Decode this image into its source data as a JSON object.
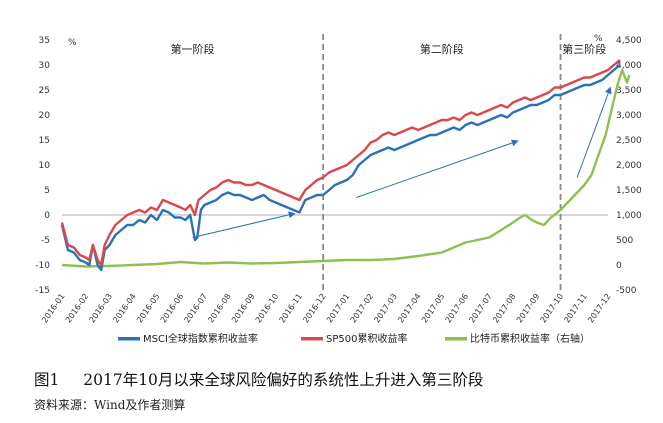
{
  "caption": {
    "figure_no": "图1",
    "title": "2017年10月以来全球风险偏好的系统性上升进入第三阶段",
    "source": "资料来源：Wind及作者测算"
  },
  "chart_data": {
    "type": "line",
    "left_axis": {
      "unit": "%",
      "ticks": [
        "35",
        "30",
        "25",
        "20",
        "15",
        "10",
        "5",
        "0",
        "-5",
        "-10",
        "-15"
      ],
      "min": -15,
      "max": 35
    },
    "right_axis": {
      "unit": "%",
      "ticks": [
        "4,500",
        "4,000",
        "3,500",
        "3,000",
        "2,500",
        "2,000",
        "1,500",
        "1,000",
        "500",
        "0",
        "-500"
      ],
      "min": -500,
      "max": 4500
    },
    "x_ticks": [
      "2016-01",
      "2016-02",
      "2016-03",
      "2016-04",
      "2016-05",
      "2016-06",
      "2016-07",
      "2016-08",
      "2016-09",
      "2016-10",
      "2016-11",
      "2016-12",
      "2017-01",
      "2017-02",
      "2017-03",
      "2017-04",
      "2017-05",
      "2017-06",
      "2017-07",
      "2017-08",
      "2017-09",
      "2017-10",
      "2017-11",
      "2017-12"
    ],
    "phases": [
      {
        "label": "第一阶段"
      },
      {
        "label": "第二阶段"
      },
      {
        "label": "第三阶段"
      }
    ],
    "phase_dividers": [
      "2016-12",
      "2017-10"
    ],
    "legend": [
      "MSCI全球指数累积收益率",
      "SP500累积收益率",
      "比特币累积收益率（右轴）"
    ],
    "colors": {
      "msci": "#2a72b5",
      "sp500": "#d9484a",
      "btc": "#8cc152",
      "arrow": "#2a72b5",
      "divider": "#888888"
    },
    "series": [
      {
        "name": "MSCI全球指数累积收益率",
        "axis": "left",
        "points": [
          [
            0,
            -2
          ],
          [
            0.25,
            -7
          ],
          [
            0.5,
            -7.5
          ],
          [
            0.75,
            -9
          ],
          [
            1.0,
            -9.5
          ],
          [
            1.15,
            -10
          ],
          [
            1.3,
            -6
          ],
          [
            1.5,
            -10
          ],
          [
            1.65,
            -11
          ],
          [
            1.8,
            -7
          ],
          [
            2.0,
            -6
          ],
          [
            2.25,
            -4
          ],
          [
            2.5,
            -3
          ],
          [
            2.75,
            -2
          ],
          [
            3.0,
            -2
          ],
          [
            3.25,
            -1
          ],
          [
            3.5,
            -1.5
          ],
          [
            3.75,
            0
          ],
          [
            4.0,
            -1
          ],
          [
            4.25,
            1
          ],
          [
            4.5,
            0.5
          ],
          [
            4.75,
            -0.5
          ],
          [
            5.0,
            -0.5
          ],
          [
            5.2,
            -1
          ],
          [
            5.4,
            0
          ],
          [
            5.6,
            -5
          ],
          [
            5.7,
            -4.5
          ],
          [
            5.85,
            1
          ],
          [
            6.0,
            2
          ],
          [
            6.25,
            2.5
          ],
          [
            6.5,
            3
          ],
          [
            6.75,
            4
          ],
          [
            7.0,
            4.5
          ],
          [
            7.25,
            4
          ],
          [
            7.5,
            4
          ],
          [
            7.75,
            3.5
          ],
          [
            8.0,
            3
          ],
          [
            8.25,
            3.5
          ],
          [
            8.5,
            4
          ],
          [
            8.75,
            3
          ],
          [
            9.0,
            2.5
          ],
          [
            9.25,
            2
          ],
          [
            9.5,
            1.5
          ],
          [
            9.75,
            1
          ],
          [
            10.0,
            0.5
          ],
          [
            10.25,
            3
          ],
          [
            10.5,
            3.5
          ],
          [
            10.75,
            4
          ],
          [
            11.0,
            4
          ],
          [
            11.25,
            5
          ],
          [
            11.5,
            6
          ],
          [
            11.75,
            6.5
          ],
          [
            12.0,
            7
          ],
          [
            12.25,
            8
          ],
          [
            12.5,
            10
          ],
          [
            12.75,
            11
          ],
          [
            13.0,
            12
          ],
          [
            13.25,
            12.5
          ],
          [
            13.5,
            13
          ],
          [
            13.75,
            13.5
          ],
          [
            14.0,
            13
          ],
          [
            14.25,
            13.5
          ],
          [
            14.5,
            14
          ],
          [
            14.75,
            14.5
          ],
          [
            15.0,
            15
          ],
          [
            15.25,
            15.5
          ],
          [
            15.5,
            16
          ],
          [
            15.75,
            16
          ],
          [
            16.0,
            16.5
          ],
          [
            16.25,
            17
          ],
          [
            16.5,
            17.5
          ],
          [
            16.75,
            17
          ],
          [
            17.0,
            18
          ],
          [
            17.25,
            18.5
          ],
          [
            17.5,
            18
          ],
          [
            17.75,
            18.5
          ],
          [
            18.0,
            19
          ],
          [
            18.25,
            19.5
          ],
          [
            18.5,
            20
          ],
          [
            18.75,
            19.5
          ],
          [
            19.0,
            20.5
          ],
          [
            19.25,
            21
          ],
          [
            19.5,
            21.5
          ],
          [
            19.75,
            22
          ],
          [
            20.0,
            22
          ],
          [
            20.25,
            22.5
          ],
          [
            20.5,
            23
          ],
          [
            20.75,
            24
          ],
          [
            21.0,
            24
          ],
          [
            21.25,
            24.5
          ],
          [
            21.5,
            25
          ],
          [
            21.75,
            25.5
          ],
          [
            22.0,
            26
          ],
          [
            22.25,
            26
          ],
          [
            22.5,
            26.5
          ],
          [
            22.75,
            27
          ],
          [
            23.0,
            28
          ],
          [
            23.25,
            29
          ],
          [
            23.5,
            30
          ]
        ]
      },
      {
        "name": "SP500累积收益率",
        "axis": "left",
        "points": [
          [
            0,
            -1.5
          ],
          [
            0.25,
            -6
          ],
          [
            0.5,
            -6.5
          ],
          [
            0.75,
            -8
          ],
          [
            1.0,
            -8.5
          ],
          [
            1.15,
            -9
          ],
          [
            1.3,
            -6
          ],
          [
            1.5,
            -9
          ],
          [
            1.65,
            -10
          ],
          [
            1.8,
            -6
          ],
          [
            2.0,
            -4
          ],
          [
            2.25,
            -2
          ],
          [
            2.5,
            -1
          ],
          [
            2.75,
            0
          ],
          [
            3.0,
            0.5
          ],
          [
            3.25,
            1
          ],
          [
            3.5,
            0.5
          ],
          [
            3.75,
            1.5
          ],
          [
            4.0,
            1
          ],
          [
            4.25,
            3
          ],
          [
            4.5,
            2.5
          ],
          [
            4.75,
            2
          ],
          [
            5.0,
            1.5
          ],
          [
            5.2,
            1
          ],
          [
            5.4,
            2
          ],
          [
            5.6,
            0
          ],
          [
            5.75,
            3
          ],
          [
            6.0,
            4
          ],
          [
            6.25,
            5
          ],
          [
            6.5,
            5.5
          ],
          [
            6.75,
            6.5
          ],
          [
            7.0,
            7
          ],
          [
            7.25,
            6.5
          ],
          [
            7.5,
            6.5
          ],
          [
            7.75,
            6
          ],
          [
            8.0,
            6
          ],
          [
            8.25,
            6.5
          ],
          [
            8.5,
            6
          ],
          [
            8.75,
            5.5
          ],
          [
            9.0,
            5
          ],
          [
            9.25,
            4.5
          ],
          [
            9.5,
            4
          ],
          [
            9.75,
            3.5
          ],
          [
            10.0,
            3
          ],
          [
            10.25,
            5
          ],
          [
            10.5,
            6
          ],
          [
            10.75,
            7
          ],
          [
            11.0,
            7.5
          ],
          [
            11.25,
            8.5
          ],
          [
            11.5,
            9
          ],
          [
            11.75,
            9.5
          ],
          [
            12.0,
            10
          ],
          [
            12.25,
            11
          ],
          [
            12.5,
            12
          ],
          [
            12.75,
            13
          ],
          [
            13.0,
            14.5
          ],
          [
            13.25,
            15
          ],
          [
            13.5,
            16
          ],
          [
            13.75,
            16.5
          ],
          [
            14.0,
            16
          ],
          [
            14.25,
            16.5
          ],
          [
            14.5,
            17
          ],
          [
            14.75,
            17.5
          ],
          [
            15.0,
            17
          ],
          [
            15.25,
            17.5
          ],
          [
            15.5,
            18
          ],
          [
            15.75,
            18.5
          ],
          [
            16.0,
            19
          ],
          [
            16.25,
            19
          ],
          [
            16.5,
            19.5
          ],
          [
            16.75,
            19
          ],
          [
            17.0,
            20
          ],
          [
            17.25,
            20.5
          ],
          [
            17.5,
            20
          ],
          [
            17.75,
            20.5
          ],
          [
            18.0,
            21
          ],
          [
            18.25,
            21.5
          ],
          [
            18.5,
            22
          ],
          [
            18.75,
            21.5
          ],
          [
            19.0,
            22.5
          ],
          [
            19.25,
            23
          ],
          [
            19.5,
            23.5
          ],
          [
            19.75,
            23
          ],
          [
            20.0,
            23.5
          ],
          [
            20.25,
            24
          ],
          [
            20.5,
            24.5
          ],
          [
            20.75,
            25.5
          ],
          [
            21.0,
            25.5
          ],
          [
            21.25,
            26
          ],
          [
            21.5,
            26.5
          ],
          [
            21.75,
            27
          ],
          [
            22.0,
            27.5
          ],
          [
            22.25,
            27.5
          ],
          [
            22.5,
            28
          ],
          [
            22.75,
            28.5
          ],
          [
            23.0,
            29
          ],
          [
            23.25,
            30
          ],
          [
            23.5,
            31
          ]
        ]
      },
      {
        "name": "比特币累积收益率（右轴）",
        "axis": "right",
        "points": [
          [
            0,
            0
          ],
          [
            1,
            -30
          ],
          [
            2,
            -20
          ],
          [
            3,
            0
          ],
          [
            4,
            20
          ],
          [
            5,
            60
          ],
          [
            6,
            30
          ],
          [
            7,
            50
          ],
          [
            8,
            30
          ],
          [
            9,
            40
          ],
          [
            10,
            60
          ],
          [
            11,
            80
          ],
          [
            12,
            100
          ],
          [
            13,
            100
          ],
          [
            14,
            120
          ],
          [
            15,
            180
          ],
          [
            16,
            250
          ],
          [
            16.5,
            350
          ],
          [
            17,
            450
          ],
          [
            17.5,
            500
          ],
          [
            18,
            550
          ],
          [
            18.5,
            700
          ],
          [
            19,
            850
          ],
          [
            19.3,
            950
          ],
          [
            19.5,
            1000
          ],
          [
            19.8,
            900
          ],
          [
            20,
            850
          ],
          [
            20.3,
            800
          ],
          [
            20.6,
            950
          ],
          [
            21,
            1100
          ],
          [
            21.3,
            1250
          ],
          [
            21.6,
            1400
          ],
          [
            22,
            1600
          ],
          [
            22.3,
            1800
          ],
          [
            22.6,
            2200
          ],
          [
            22.9,
            2600
          ],
          [
            23.2,
            3200
          ],
          [
            23.4,
            3600
          ],
          [
            23.6,
            3900
          ],
          [
            23.8,
            3650
          ],
          [
            23.9,
            3800
          ]
        ]
      }
    ]
  }
}
